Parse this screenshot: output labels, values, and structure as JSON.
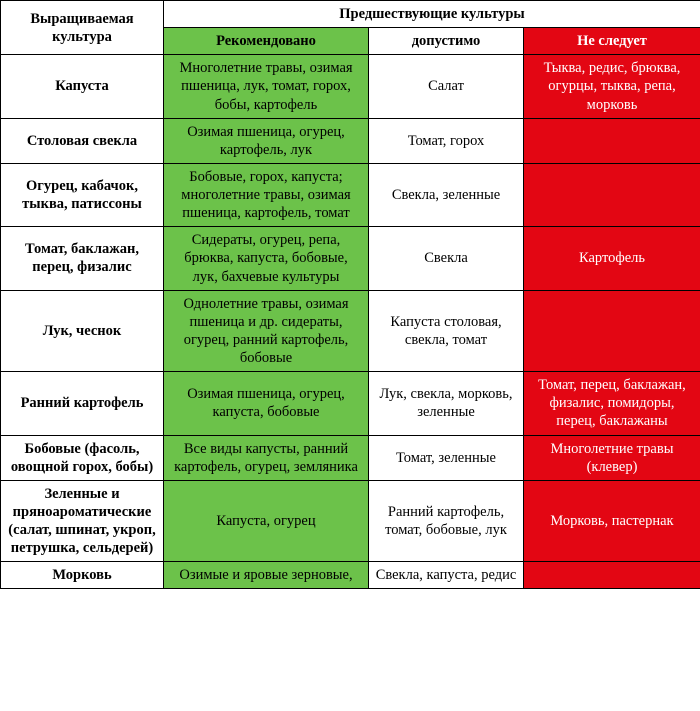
{
  "colors": {
    "header_bg": "#ffffff",
    "recommended_bg": "#6cc24a",
    "acceptable_bg": "#ffffff",
    "avoid_bg": "#e30613",
    "avoid_text": "#ffffff",
    "border": "#000000"
  },
  "typography": {
    "font_family": "Times New Roman",
    "cell_fontsize_pt": 11,
    "header_fontsize_pt": 11,
    "crop_fontweight": "bold"
  },
  "header": {
    "crop_label": "Выращиваемая культура",
    "group_label": "Предшествующие культуры",
    "recommended": "Рекомендовано",
    "acceptable": "допустимо",
    "avoid": "Не следует"
  },
  "rows": [
    {
      "crop": "Капуста",
      "rec": "Многолетние травы, озимая пшеница, лук, томат, горох, бобы, картофель",
      "ok": "Салат",
      "bad": "Тыква, редис, брюква, огурцы, тыква, репа, морковь"
    },
    {
      "crop": "Столовая свекла",
      "rec": "Озимая пшеница, огурец, картофель, лук",
      "ok": "Томат, горох",
      "bad": ""
    },
    {
      "crop": "Огурец, кабачок, тыква, патиссоны",
      "rec": "Бобовые, горох, капуста; многолетние травы, озимая пшеница, картофель, томат",
      "ok": "Свекла, зеленные",
      "bad": ""
    },
    {
      "crop": "Томат, баклажан, перец, физалис",
      "rec": "Сидераты, огурец, репа, брюква, капуста, бобовые, лук, бахчевые культуры",
      "ok": "Свекла",
      "bad": "Картофель"
    },
    {
      "crop": "Лук, чеснок",
      "rec": "Однолетние травы, озимая пшеница и др. сидераты, огурец, ранний картофель, бобовые",
      "ok": "Капуста столовая, свекла, томат",
      "bad": ""
    },
    {
      "crop": "Ранний картофель",
      "rec": "Озимая пшеница, огурец, капуста, бобовые",
      "ok": "Лук, свекла, морковь, зеленные",
      "bad": "Томат, перец, баклажан, физалис, помидоры, перец, баклажаны"
    },
    {
      "crop": "Бобовые (фасоль, овощной горох, бобы)",
      "rec": "Все виды капусты, ранний картофель, огурец, земляника",
      "ok": "Томат, зеленные",
      "bad": "Многолетние травы (клевер)"
    },
    {
      "crop": "Зеленные и пряноароматические (салат, шпинат, укроп, петрушка, сельдерей)",
      "rec": "Капуста, огурец",
      "ok": "Ранний картофель, томат, бобовые, лук",
      "bad": "Морковь, пастернак"
    },
    {
      "crop": "Морковь",
      "rec": "Озимые и яровые зерновые,",
      "ok": "Свекла, капуста, редис",
      "bad": ""
    }
  ]
}
